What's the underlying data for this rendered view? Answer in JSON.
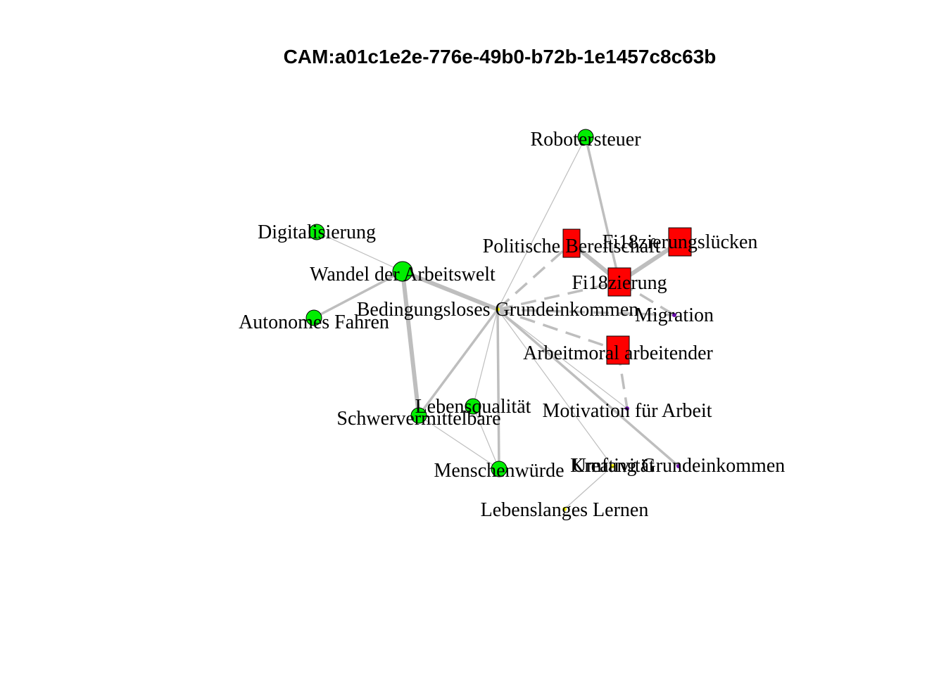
{
  "title": "CAM:a01c1e2e-776e-49b0-b72b-1e1457c8c63b",
  "colors": {
    "positive": "#00ee00",
    "negative": "#ff0000",
    "neutral": "#ffff00",
    "ambivalent": "#6a0dad",
    "edge": "#bebebe"
  },
  "nodes": [
    {
      "id": "roboter",
      "label": "Robotersteuer",
      "shape": "circle",
      "color": "positive",
      "size": "small"
    },
    {
      "id": "digital",
      "label": "Digitalisierung",
      "shape": "circle",
      "color": "positive",
      "size": "small"
    },
    {
      "id": "wandel",
      "label": "Wandel der Arbeitswelt",
      "shape": "circle",
      "color": "positive",
      "size": "large"
    },
    {
      "id": "auto",
      "label": "Autonomes Fahren",
      "shape": "circle",
      "color": "positive",
      "size": "small"
    },
    {
      "id": "bge",
      "label": "Bedingungsloses Grundeinkommen",
      "shape": "dot",
      "color": "neutral",
      "size": "tiny"
    },
    {
      "id": "polit",
      "label": "Politische Bereitschaft",
      "shape": "square",
      "color": "negative",
      "size": "medium"
    },
    {
      "id": "finlueck",
      "label": "Fi18zierungslücken",
      "shape": "square",
      "color": "negative",
      "size": "medium"
    },
    {
      "id": "fin",
      "label": "Fi18zierung",
      "shape": "square",
      "color": "negative",
      "size": "medium"
    },
    {
      "id": "migration",
      "label": "Migration",
      "shape": "dot",
      "color": "ambivalent",
      "size": "tiny"
    },
    {
      "id": "moral",
      "label": "Arbeitmoral arbeitender",
      "shape": "square",
      "color": "negative",
      "size": "medium"
    },
    {
      "id": "lebensq",
      "label": "Lebensqualität",
      "shape": "circle",
      "color": "positive",
      "size": "small"
    },
    {
      "id": "schwer",
      "label": "Schwervermittelbare",
      "shape": "circle",
      "color": "positive",
      "size": "small"
    },
    {
      "id": "motiv",
      "label": "Motivation für Arbeit",
      "shape": "dot",
      "color": "ambivalent",
      "size": "tiny"
    },
    {
      "id": "kreat",
      "label": "Kreativität",
      "shape": "dot",
      "color": "neutral",
      "size": "tiny"
    },
    {
      "id": "umfang",
      "label": "Umfang Grundeinkommen",
      "shape": "dot",
      "color": "ambivalent",
      "size": "tiny"
    },
    {
      "id": "wuerde",
      "label": "Menschenwürde",
      "shape": "circle",
      "color": "positive",
      "size": "small"
    },
    {
      "id": "lernen",
      "label": "Lebenslanges Lernen",
      "shape": "dot",
      "color": "neutral",
      "size": "tiny"
    }
  ],
  "edges": [
    {
      "from": "bge",
      "to": "wandel",
      "weight": "thick",
      "style": "solid"
    },
    {
      "from": "wandel",
      "to": "digital",
      "weight": "thin",
      "style": "solid"
    },
    {
      "from": "wandel",
      "to": "auto",
      "weight": "medium",
      "style": "solid"
    },
    {
      "from": "wandel",
      "to": "schwer",
      "weight": "thick",
      "style": "solid"
    },
    {
      "from": "bge",
      "to": "roboter",
      "weight": "thin",
      "style": "solid"
    },
    {
      "from": "roboter",
      "to": "fin",
      "weight": "medium",
      "style": "solid"
    },
    {
      "from": "bge",
      "to": "polit",
      "weight": "medium",
      "style": "dashed"
    },
    {
      "from": "bge",
      "to": "fin",
      "weight": "medium",
      "style": "dashed"
    },
    {
      "from": "polit",
      "to": "fin",
      "weight": "thick",
      "style": "solid"
    },
    {
      "from": "fin",
      "to": "finlueck",
      "weight": "thick",
      "style": "solid"
    },
    {
      "from": "fin",
      "to": "migration",
      "weight": "medium",
      "style": "dashed"
    },
    {
      "from": "bge",
      "to": "migration",
      "weight": "medium",
      "style": "dashed"
    },
    {
      "from": "bge",
      "to": "moral",
      "weight": "medium",
      "style": "dashed"
    },
    {
      "from": "moral",
      "to": "motiv",
      "weight": "medium",
      "style": "dashed"
    },
    {
      "from": "bge",
      "to": "motiv",
      "weight": "thin",
      "style": "solid"
    },
    {
      "from": "bge",
      "to": "schwer",
      "weight": "medium",
      "style": "solid"
    },
    {
      "from": "bge",
      "to": "lebensq",
      "weight": "thin",
      "style": "solid"
    },
    {
      "from": "bge",
      "to": "wuerde",
      "weight": "medium",
      "style": "solid"
    },
    {
      "from": "bge",
      "to": "kreat",
      "weight": "thin",
      "style": "solid"
    },
    {
      "from": "bge",
      "to": "umfang",
      "weight": "medium",
      "style": "solid"
    },
    {
      "from": "schwer",
      "to": "wuerde",
      "weight": "thin",
      "style": "solid"
    },
    {
      "from": "lebensq",
      "to": "wuerde",
      "weight": "thin",
      "style": "solid"
    },
    {
      "from": "kreat",
      "to": "lernen",
      "weight": "thin",
      "style": "solid"
    }
  ]
}
